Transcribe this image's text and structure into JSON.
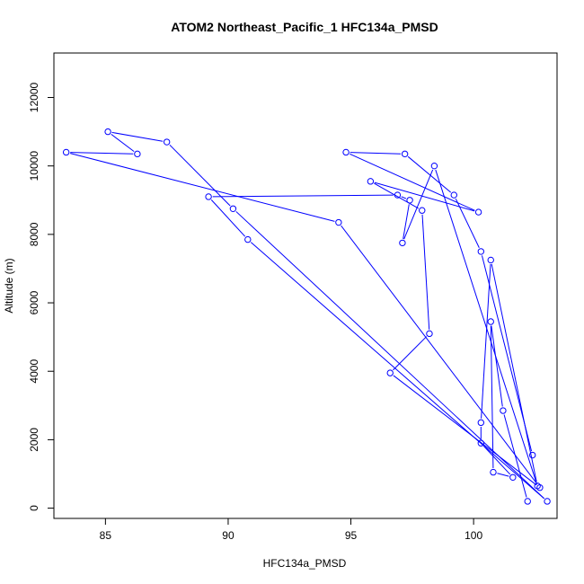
{
  "chart_data": {
    "type": "line",
    "title": "ATOM2 Northeast_Pacific_1 HFC134a_PMSD",
    "xlabel": "HFC134a_PMSD",
    "ylabel": "Altitude (m)",
    "xlim": [
      82.9,
      103.4
    ],
    "ylim": [
      -300,
      13300
    ],
    "xticks": [
      85,
      90,
      95,
      100
    ],
    "yticks": [
      0,
      2000,
      4000,
      6000,
      8000,
      10000,
      12000
    ],
    "grid": false,
    "line_color": "#0000ff",
    "marker": "open-circle",
    "series": [
      {
        "points": [
          [
            102.2,
            200
          ],
          [
            101.2,
            2850
          ],
          [
            100.7,
            5450
          ],
          [
            100.8,
            1050
          ],
          [
            101.6,
            900
          ],
          [
            100.3,
            1900
          ],
          [
            100.3,
            2500
          ],
          [
            100.7,
            7250
          ],
          [
            102.6,
            650
          ],
          [
            98.4,
            10000
          ],
          [
            97.1,
            7750
          ],
          [
            97.4,
            9000
          ],
          [
            96.9,
            9150
          ],
          [
            89.2,
            9100
          ],
          [
            90.8,
            7850
          ],
          [
            103.0,
            200
          ],
          [
            90.2,
            8750
          ],
          [
            87.5,
            10700
          ],
          [
            85.1,
            11000
          ],
          [
            86.3,
            10350
          ],
          [
            83.4,
            10400
          ],
          [
            94.5,
            8350
          ],
          [
            102.7,
            600
          ],
          [
            96.6,
            3950
          ],
          [
            98.2,
            5100
          ],
          [
            97.9,
            8700
          ],
          [
            95.8,
            9550
          ],
          [
            100.2,
            8650
          ],
          [
            94.8,
            10400
          ],
          [
            97.2,
            10350
          ],
          [
            99.2,
            9150
          ],
          [
            100.3,
            7500
          ],
          [
            102.4,
            1550
          ]
        ]
      }
    ]
  }
}
